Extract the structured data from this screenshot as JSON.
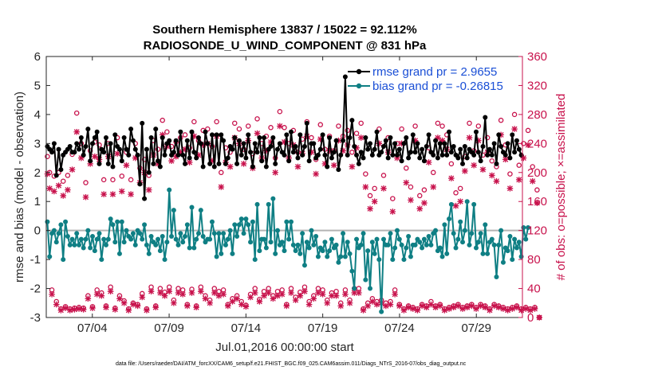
{
  "chart_data": {
    "type": "line",
    "title": "Southern Hemisphere 13837 / 15022 = 92.112%",
    "subtitle": "RADIOSONDE_U_WIND_COMPONENT @ 831 hPa",
    "xlabel": "Jul.01,2016 00:00:00 start",
    "ylabel": "rmse and bias (model - observation)",
    "y2label": "# of obs: o=possible; ×=assimilated",
    "footer": "data file: /Users/raeder/DAI/ATM_forcXX/CAM6_setup/f.e21.FHIST_BGC.f09_025.CAM6assim.011/Diags_NTrS_2016-07/obs_diag_output.nc",
    "xlim": [
      1,
      32
    ],
    "ylim": [
      -3,
      6
    ],
    "y2lim": [
      0,
      360
    ],
    "xticks": [
      4,
      9,
      14,
      19,
      24,
      29
    ],
    "xtick_labels": [
      "07/04",
      "07/09",
      "07/14",
      "07/19",
      "07/24",
      "07/29"
    ],
    "yticks": [
      "-3",
      "-2",
      "-1",
      "0",
      "1",
      "2",
      "3",
      "4",
      "5",
      "6"
    ],
    "y2ticks": [
      "0",
      "40",
      "80",
      "120",
      "160",
      "200",
      "240",
      "280",
      "320",
      "360"
    ],
    "legend": [
      {
        "label": "rmse grand pr = 2.9655",
        "color": "#000000"
      },
      {
        "label": "bias grand pr = -0.26815",
        "color": "#0f7f84"
      }
    ],
    "colors": {
      "rmse": "#000000",
      "bias": "#0f7f84",
      "obs": "#c8124c",
      "zero": "#b3b3b3"
    },
    "series": [
      {
        "name": "rmse",
        "axis": "left",
        "values": [
          2.9,
          2.8,
          2.7,
          3.0,
          1.9,
          2.8,
          2.1,
          2.6,
          2.7,
          2.8,
          2.9,
          2.7,
          2.7,
          3.0,
          2.8,
          3.2,
          2.6,
          2.9,
          3.5,
          2.4,
          3.0,
          3.2,
          3.4,
          2.3,
          2.8,
          2.7,
          3.2,
          2.3,
          3.0,
          2.2,
          3.3,
          2.9,
          2.8,
          2.4,
          3.2,
          2.8,
          2.6,
          3.5,
          3.1,
          2.8,
          2.6,
          1.6,
          3.7,
          1.1,
          2.8,
          2.0,
          3.2,
          2.3,
          3.5,
          2.4,
          2.2,
          3.2,
          2.6,
          3.0,
          3.1,
          2.6,
          2.7,
          3.1,
          2.6,
          3.4,
          2.6,
          2.3,
          3.1,
          2.5,
          3.4,
          2.7,
          2.5,
          3.2,
          3.0,
          2.2,
          3.4,
          3.0,
          2.3,
          3.3,
          2.2,
          3.3,
          2.3,
          3.3,
          3.1,
          2.3,
          2.5,
          2.9,
          2.8,
          3.2,
          2.3,
          3.1,
          2.6,
          3.0,
          2.5,
          3.3,
          2.7,
          2.2,
          3.0,
          2.7,
          3.2,
          2.4,
          3.2,
          2.2,
          2.8,
          2.9,
          3.2,
          2.3,
          2.8,
          3.0,
          2.7,
          2.6,
          3.3,
          2.4,
          3.4,
          2.7,
          2.9,
          2.5,
          3.3,
          2.6,
          2.9,
          3.7,
          2.4,
          3.0,
          3.0,
          2.5,
          2.6,
          2.8,
          3.3,
          2.6,
          2.2,
          3.2,
          2.5,
          2.7,
          3.1,
          2.1,
          2.6,
          3.1,
          5.3,
          2.6,
          3.2,
          3.8,
          2.9,
          2.6,
          2.3,
          2.7,
          2.5,
          3.2,
          2.8,
          3.0,
          2.6,
          2.8,
          3.4,
          2.6,
          2.7,
          2.9,
          3.1,
          2.5,
          3.2,
          2.6,
          3.0,
          2.6,
          2.8,
          2.4,
          3.0,
          3.2,
          2.5,
          2.7,
          3.3,
          2.7,
          3.0,
          2.5,
          2.8,
          2.4,
          2.9,
          3.3,
          2.7,
          2.6,
          3.1,
          2.5,
          3.0,
          2.6,
          3.0,
          2.6,
          3.4,
          2.7,
          2.9,
          2.6,
          2.5,
          2.8,
          2.3,
          2.9,
          2.5,
          2.8,
          2.7,
          2.6,
          3.4,
          2.7,
          2.4,
          2.9,
          3.9,
          2.6,
          2.8,
          2.6,
          3.0,
          2.3,
          3.3,
          2.9,
          2.7,
          2.6,
          3.0,
          2.5,
          3.3,
          2.7,
          3.1,
          2.8,
          2.6
        ]
      },
      {
        "name": "bias",
        "axis": "left",
        "values": [
          0.3,
          -0.9,
          -0.1,
          0.0,
          -0.4,
          -0.1,
          0.2,
          -1.0,
          0.3,
          -0.2,
          -0.5,
          -0.3,
          -0.5,
          -0.1,
          -0.5,
          -0.3,
          -0.6,
          -0.3,
          0.0,
          -0.6,
          -0.2,
          -0.7,
          -0.3,
          -0.1,
          -1.0,
          -0.3,
          -0.5,
          -0.3,
          0.4,
          0.2,
          -0.4,
          0.3,
          -0.8,
          0.3,
          -0.4,
          0.0,
          -0.2,
          -0.3,
          -0.1,
          -0.5,
          0.0,
          -0.1,
          -0.3,
          0.2,
          -0.5,
          -0.8,
          -0.2,
          -0.4,
          -0.5,
          -0.3,
          -0.7,
          -0.2,
          -1.0,
          -0.4,
          1.4,
          -0.2,
          0.7,
          -0.3,
          -0.5,
          -0.1,
          -0.4,
          -0.2,
          0.2,
          -0.6,
          0.8,
          -0.6,
          -0.3,
          -0.1,
          0.7,
          -0.2,
          -0.4,
          -0.3,
          -0.3,
          0.3,
          -0.1,
          -0.9,
          -0.1,
          -0.8,
          -0.1,
          -0.5,
          -0.3,
          0.0,
          -0.8,
          0.2,
          -0.2,
          0.2,
          0.4,
          -0.1,
          0.4,
          0.2,
          -0.4,
          0.3,
          -1.0,
          0.9,
          -0.7,
          -0.3,
          -0.3,
          -0.6,
          0.9,
          -0.4,
          1.1,
          -0.8,
          0.0,
          -0.5,
          -0.4,
          -0.7,
          0.3,
          -0.3,
          0.3,
          -0.5,
          -0.7,
          -0.5,
          -0.8,
          -0.1,
          -1.2,
          -0.4,
          -0.6,
          0.0,
          -0.5,
          -0.2,
          -0.9,
          -0.6,
          -0.7,
          -0.4,
          -0.9,
          -0.7,
          -0.3,
          -0.6,
          -0.5,
          -1.1,
          -0.9,
          -0.1,
          -0.9,
          -0.4,
          -0.8,
          -1.4,
          -2.0,
          -0.3,
          -0.6,
          -0.5,
          -0.1,
          -1.7,
          -0.7,
          -2.0,
          -0.4,
          -0.8,
          -0.3,
          -1.0,
          -2.8,
          -0.3,
          -0.5,
          -0.5,
          -0.1,
          -1.0,
          -0.6,
          0.0,
          -0.3,
          -0.5,
          -1.0,
          -0.6,
          -0.2,
          -0.9,
          -0.5,
          -0.5,
          -0.3,
          -0.4,
          -0.6,
          -0.3,
          -0.5,
          -0.2,
          -0.5,
          -0.1,
          0.0,
          -0.7,
          -0.6,
          -0.9,
          0.2,
          -0.8,
          0.4,
          0.9,
          -0.1,
          -0.6,
          -0.3,
          0.3,
          -0.4,
          0.0,
          1.0,
          -0.5,
          -0.1,
          0.9,
          -0.6,
          -0.4,
          -0.1,
          -0.8,
          0.2,
          -0.8,
          -0.4,
          -0.3,
          -0.5,
          -1.6,
          -0.5,
          0.0,
          -1.1,
          -0.6,
          -0.7,
          -0.2,
          -1.0,
          -0.3,
          -0.6,
          -0.4,
          -0.9,
          0.1,
          -0.3,
          0.1
        ]
      },
      {
        "name": "obs possible (o)",
        "axis": "right",
        "marker": "o",
        "values": [
          222,
          200,
          38,
          195,
          22,
          200,
          12,
          188,
          15,
          196,
          12,
          225,
          13,
          282,
          14,
          240,
          13,
          186,
          30,
          230,
          15,
          242,
          38,
          238,
          34,
          190,
          16,
          240,
          42,
          190,
          13,
          248,
          30,
          195,
          23,
          228,
          12,
          190,
          20,
          240,
          18,
          206,
          33,
          218,
          12,
          196,
          42,
          244,
          16,
          232,
          40,
          272,
          35,
          256,
          42,
          236,
          24,
          242,
          40,
          248,
          38,
          252,
          18,
          234,
          39,
          270,
          16,
          244,
          42,
          258,
          30,
          260,
          24,
          236,
          40,
          270,
          36,
          200,
          38,
          234,
          18,
          228,
          26,
          268,
          30,
          260,
          22,
          232,
          17,
          264,
          32,
          226,
          40,
          274,
          25,
          240,
          36,
          250,
          40,
          262,
          30,
          220,
          36,
          284,
          38,
          262,
          18,
          240,
          40,
          258,
          28,
          228,
          35,
          246,
          42,
          270,
          22,
          248,
          30,
          218,
          40,
          266,
          38,
          232,
          24,
          250,
          34,
          230,
          36,
          264,
          20,
          250,
          38,
          258,
          24,
          228,
          40,
          254,
          40,
          268,
          12,
          198,
          20,
          168,
          26,
          178,
          22,
          260,
          24,
          196,
          20,
          248,
          22,
          164,
          38,
          240,
          18,
          260,
          12,
          206,
          16,
          180,
          14,
          264,
          12,
          168,
          18,
          176,
          16,
          234,
          22,
          200,
          16,
          268,
          18,
          264,
          12,
          252,
          14,
          212,
          16,
          172,
          18,
          178,
          14,
          222,
          16,
          268,
          18,
          230,
          14,
          264,
          18,
          224,
          16,
          248,
          12,
          216,
          18,
          208,
          16,
          272,
          14,
          238,
          12,
          198,
          14,
          280,
          16,
          210,
          12,
          240,
          14,
          258,
          12,
          208,
          14,
          176,
          0
        ]
      },
      {
        "name": "obs assimilated (x)",
        "axis": "right",
        "marker": "x",
        "values": [
          198,
          178,
          32,
          174,
          18,
          182,
          10,
          168,
          13,
          176,
          10,
          204,
          11,
          256,
          12,
          220,
          11,
          166,
          26,
          212,
          13,
          222,
          32,
          218,
          30,
          170,
          14,
          222,
          36,
          170,
          11,
          226,
          26,
          174,
          20,
          210,
          10,
          170,
          18,
          220,
          16,
          186,
          28,
          200,
          10,
          176,
          36,
          224,
          14,
          212,
          34,
          252,
          30,
          236,
          36,
          216,
          20,
          222,
          34,
          228,
          32,
          232,
          16,
          214,
          34,
          250,
          14,
          224,
          36,
          238,
          26,
          240,
          20,
          216,
          34,
          250,
          30,
          180,
          32,
          214,
          16,
          208,
          22,
          248,
          26,
          240,
          18,
          212,
          15,
          244,
          28,
          206,
          34,
          254,
          22,
          220,
          30,
          230,
          34,
          242,
          26,
          200,
          30,
          264,
          32,
          242,
          16,
          220,
          34,
          238,
          24,
          208,
          30,
          226,
          36,
          250,
          18,
          228,
          26,
          198,
          34,
          246,
          32,
          212,
          20,
          230,
          30,
          210,
          30,
          244,
          16,
          230,
          32,
          238,
          20,
          208,
          34,
          234,
          34,
          248,
          10,
          180,
          16,
          150,
          22,
          160,
          18,
          240,
          20,
          178,
          16,
          228,
          18,
          146,
          32,
          220,
          16,
          240,
          10,
          186,
          14,
          162,
          12,
          244,
          10,
          150,
          16,
          158,
          14,
          214,
          18,
          180,
          14,
          248,
          16,
          244,
          10,
          232,
          12,
          192,
          14,
          154,
          16,
          160,
          12,
          202,
          14,
          248,
          16,
          210,
          12,
          244,
          16,
          204,
          14,
          228,
          10,
          196,
          16,
          188,
          14,
          252,
          12,
          218,
          10,
          178,
          12,
          260,
          14,
          190,
          10,
          220,
          12,
          238,
          10,
          188,
          12,
          158,
          0
        ]
      }
    ]
  }
}
